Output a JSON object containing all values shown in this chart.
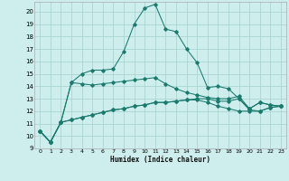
{
  "xlabel": "Humidex (Indice chaleur)",
  "background_color": "#ceeeed",
  "grid_color": "#aad4d2",
  "line_color": "#1a7a6e",
  "x_values": [
    0,
    1,
    2,
    3,
    4,
    5,
    6,
    7,
    8,
    9,
    10,
    11,
    12,
    13,
    14,
    15,
    16,
    17,
    18,
    19,
    20,
    21,
    22,
    23
  ],
  "series": [
    [
      10.4,
      9.5,
      11.1,
      14.3,
      15.0,
      15.3,
      15.3,
      15.4,
      16.8,
      19.0,
      20.3,
      20.6,
      18.6,
      18.4,
      17.0,
      15.9,
      13.9,
      14.0,
      13.8,
      13.0,
      12.2,
      12.7,
      12.5,
      12.4
    ],
    [
      10.4,
      9.5,
      11.1,
      14.3,
      14.2,
      14.1,
      14.2,
      14.3,
      14.4,
      14.5,
      14.6,
      14.7,
      14.2,
      13.8,
      13.5,
      13.3,
      13.1,
      13.0,
      13.0,
      13.2,
      12.2,
      12.7,
      12.5,
      12.4
    ],
    [
      10.4,
      9.5,
      11.1,
      11.3,
      11.5,
      11.7,
      11.9,
      12.1,
      12.2,
      12.4,
      12.5,
      12.7,
      12.7,
      12.8,
      12.9,
      13.0,
      13.0,
      12.8,
      12.8,
      13.0,
      12.1,
      12.0,
      12.3,
      12.4
    ],
    [
      10.4,
      9.5,
      11.1,
      11.3,
      11.5,
      11.7,
      11.9,
      12.1,
      12.2,
      12.4,
      12.5,
      12.7,
      12.7,
      12.8,
      12.9,
      12.9,
      12.7,
      12.4,
      12.2,
      12.0,
      12.0,
      12.0,
      12.3,
      12.4
    ]
  ],
  "ylim": [
    9,
    20.8
  ],
  "xlim": [
    -0.5,
    23.5
  ],
  "yticks": [
    9,
    10,
    11,
    12,
    13,
    14,
    15,
    16,
    17,
    18,
    19,
    20
  ],
  "xticks": [
    0,
    1,
    2,
    3,
    4,
    5,
    6,
    7,
    8,
    9,
    10,
    11,
    12,
    13,
    14,
    15,
    16,
    17,
    18,
    19,
    20,
    21,
    22,
    23
  ]
}
